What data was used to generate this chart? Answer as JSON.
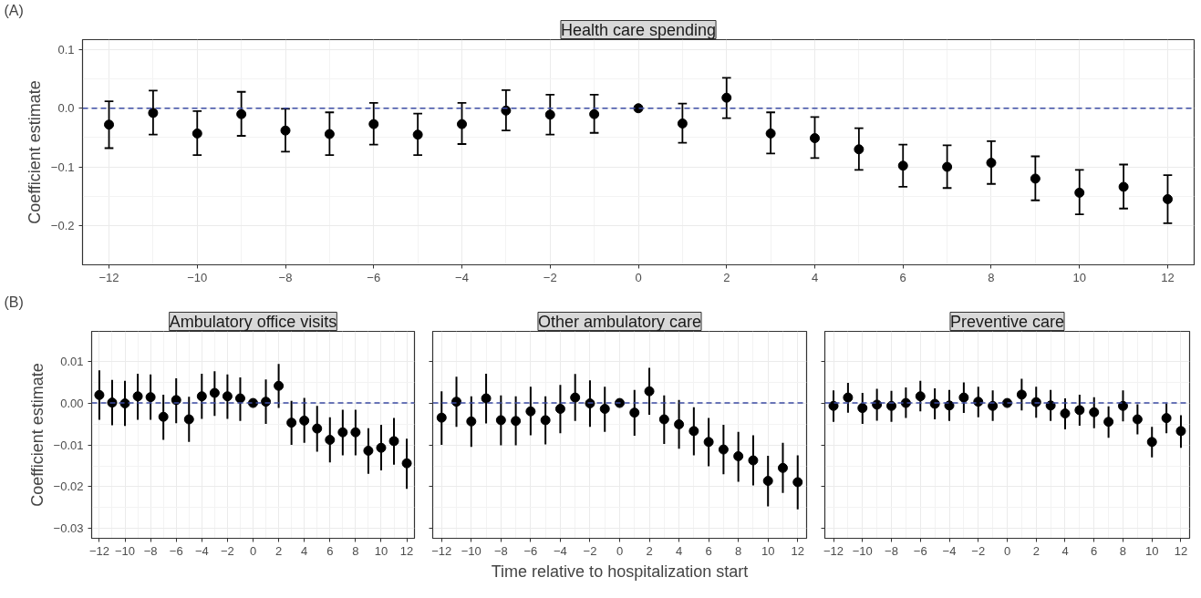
{
  "chart_data": [
    {
      "type": "scatter",
      "title": "Health care spending",
      "ylabel": "Coefficient estimate",
      "annotations": [
        "(A)"
      ],
      "marker": "circle",
      "color": "#000000",
      "grid": true,
      "x": [
        -12,
        -11,
        -10,
        -9,
        -8,
        -7,
        -6,
        -5,
        -4,
        -3,
        -2,
        -1,
        0,
        1,
        2,
        3,
        4,
        5,
        6,
        7,
        8,
        9,
        10,
        11,
        12
      ],
      "values": [
        -0.028,
        -0.008,
        -0.043,
        -0.01,
        -0.038,
        -0.044,
        -0.027,
        -0.045,
        -0.027,
        -0.004,
        -0.011,
        -0.01,
        0,
        -0.026,
        0.018,
        -0.043,
        -0.051,
        -0.07,
        -0.098,
        -0.1,
        -0.093,
        -0.12,
        -0.144,
        -0.134,
        -0.155
      ],
      "errors": [
        [
          -0.068,
          0.012
        ],
        [
          -0.045,
          0.03
        ],
        [
          -0.08,
          -0.005
        ],
        [
          -0.047,
          0.028
        ],
        [
          -0.074,
          -0.001
        ],
        [
          -0.08,
          -0.007
        ],
        [
          -0.062,
          0.009
        ],
        [
          -0.08,
          -0.009
        ],
        [
          -0.061,
          0.009
        ],
        [
          -0.038,
          0.031
        ],
        [
          -0.045,
          0.023
        ],
        [
          -0.042,
          0.023
        ],
        null,
        [
          -0.059,
          0.008
        ],
        [
          -0.017,
          0.052
        ],
        [
          -0.077,
          -0.007
        ],
        [
          -0.085,
          -0.015
        ],
        [
          -0.105,
          -0.034
        ],
        [
          -0.134,
          -0.062
        ],
        [
          -0.136,
          -0.063
        ],
        [
          -0.129,
          -0.056
        ],
        [
          -0.157,
          -0.082
        ],
        [
          -0.181,
          -0.105
        ],
        [
          -0.171,
          -0.096
        ],
        [
          -0.196,
          -0.114
        ]
      ],
      "xlim": [
        -12.6,
        12.6
      ],
      "ylim": [
        -0.267,
        0.117
      ],
      "xticks": [
        {
          "value": -12,
          "label": "−12"
        },
        {
          "value": -10,
          "label": "−10"
        },
        {
          "value": -8,
          "label": "−8"
        },
        {
          "value": -6,
          "label": "−6"
        },
        {
          "value": -4,
          "label": "−4"
        },
        {
          "value": -2,
          "label": "−2"
        },
        0,
        2,
        4,
        6,
        8,
        10,
        12
      ],
      "yticks": [
        {
          "value": -0.2,
          "label": "−0.2"
        },
        {
          "value": -0.1,
          "label": "−0.1"
        },
        {
          "value": 0,
          "label": "0.0"
        },
        0.1
      ],
      "ref_lines": [
        {
          "axis": "y",
          "value": 0,
          "color": "#3b4ba3",
          "line_style": "dashed"
        }
      ]
    },
    {
      "type": "scatter",
      "title": "Ambulatory office visits",
      "ylabel": "Coefficient estimate",
      "annotations": [
        "(B)"
      ],
      "marker": "circle",
      "color": "#000000",
      "grid": true,
      "x": [
        -12,
        -11,
        -10,
        -9,
        -8,
        -7,
        -6,
        -5,
        -4,
        -3,
        -2,
        -1,
        0,
        1,
        2,
        3,
        4,
        5,
        6,
        7,
        8,
        9,
        10,
        11,
        12
      ],
      "values": [
        0.0019,
        0.0001,
        -0.0001,
        0.0016,
        0.0014,
        -0.0033,
        0.0007,
        -0.0039,
        0.0016,
        0.0024,
        0.0016,
        0.0011,
        0,
        0.0003,
        0.0041,
        -0.0047,
        -0.0042,
        -0.0061,
        -0.0088,
        -0.007,
        -0.007,
        -0.0114,
        -0.0107,
        -0.0091,
        -0.0144
      ],
      "errors": [
        [
          -0.004,
          0.0078
        ],
        [
          -0.0053,
          0.0055
        ],
        [
          -0.0055,
          0.0053
        ],
        [
          -0.004,
          0.007
        ],
        [
          -0.004,
          0.0068
        ],
        [
          -0.0088,
          0.002
        ],
        [
          -0.0048,
          0.0059
        ],
        [
          -0.0093,
          0.0015
        ],
        [
          -0.0038,
          0.007
        ],
        [
          -0.0031,
          0.0076
        ],
        [
          -0.0038,
          0.0068
        ],
        [
          -0.0043,
          0.0061
        ],
        null,
        [
          -0.005,
          0.0056
        ],
        [
          -0.0012,
          0.0093
        ],
        [
          -0.01,
          0.0005
        ],
        [
          -0.0095,
          0.0012
        ],
        [
          -0.0116,
          -0.0007
        ],
        [
          -0.0142,
          -0.0034
        ],
        [
          -0.0125,
          -0.0016
        ],
        [
          -0.0125,
          -0.0016
        ],
        [
          -0.0169,
          -0.006
        ],
        [
          -0.0161,
          -0.0052
        ],
        [
          -0.0147,
          -0.0036
        ],
        [
          -0.0205,
          -0.0085
        ]
      ],
      "xlim": [
        -12.6,
        12.6
      ],
      "ylim": [
        -0.0323,
        0.0171
      ],
      "xticks": [
        {
          "value": -12,
          "label": "−12"
        },
        {
          "value": -10,
          "label": "−10"
        },
        {
          "value": -8,
          "label": "−8"
        },
        {
          "value": -6,
          "label": "−6"
        },
        {
          "value": -4,
          "label": "−4"
        },
        {
          "value": -2,
          "label": "−2"
        },
        0,
        2,
        4,
        6,
        8,
        10,
        12
      ],
      "yticks": [
        {
          "value": -0.03,
          "label": "−0.03"
        },
        {
          "value": -0.02,
          "label": "−0.02"
        },
        {
          "value": -0.01,
          "label": "−0.01"
        },
        {
          "value": 0,
          "label": "0.00"
        },
        0.01
      ],
      "ref_lines": [
        {
          "axis": "y",
          "value": 0,
          "color": "#3b4ba3",
          "line_style": "dashed"
        }
      ]
    },
    {
      "type": "scatter",
      "title": "Other ambulatory care",
      "xlabel": "Time relative to hospitalization start",
      "marker": "circle",
      "color": "#000000",
      "grid": true,
      "tick_labels": "x",
      "x": [
        -12,
        -11,
        -10,
        -9,
        -8,
        -7,
        -6,
        -5,
        -4,
        -3,
        -2,
        -1,
        0,
        1,
        2,
        3,
        4,
        5,
        6,
        7,
        8,
        9,
        10,
        11,
        12
      ],
      "yticks": [
        {
          "value": -0.03,
          "label": null
        },
        {
          "value": -0.02,
          "label": null
        },
        {
          "value": -0.01,
          "label": null
        },
        {
          "value": 0,
          "label": null
        },
        {
          "value": 0.01,
          "label": null
        }
      ],
      "values": [
        -0.0035,
        0.0003,
        -0.0044,
        0.0011,
        -0.0041,
        -0.0043,
        -0.002,
        -0.0041,
        -0.0014,
        0.0013,
        -0.0001,
        -0.0014,
        0,
        -0.0023,
        0.0028,
        -0.0039,
        -0.0051,
        -0.0067,
        -0.0093,
        -0.0111,
        -0.0127,
        -0.0137,
        -0.0186,
        -0.0155,
        -0.0189
      ],
      "errors": [
        [
          -0.01,
          0.0028
        ],
        [
          -0.0057,
          0.0063
        ],
        [
          -0.0105,
          0.0016
        ],
        [
          -0.0049,
          0.007
        ],
        [
          -0.0101,
          0.0018
        ],
        [
          -0.0101,
          0.0016
        ],
        [
          -0.0077,
          0.0039
        ],
        [
          -0.0099,
          0.0016
        ],
        [
          -0.0072,
          0.0043
        ],
        [
          -0.0043,
          0.0069
        ],
        [
          -0.0057,
          0.0054
        ],
        [
          -0.0069,
          0.0039
        ],
        null,
        [
          -0.0078,
          0.0031
        ],
        [
          -0.0028,
          0.0084
        ],
        [
          -0.0098,
          0.0018
        ],
        [
          -0.0109,
          0.0007
        ],
        [
          -0.0125,
          -0.001
        ],
        [
          -0.0151,
          -0.0036
        ],
        [
          -0.017,
          -0.0052
        ],
        [
          -0.0188,
          -0.0069
        ],
        [
          -0.0197,
          -0.0077
        ],
        [
          -0.0247,
          -0.0126
        ],
        [
          -0.0215,
          -0.0095
        ],
        [
          -0.0254,
          -0.0125
        ]
      ],
      "xlim": [
        -12.6,
        12.6
      ],
      "ylim": [
        -0.0323,
        0.0171
      ],
      "xticks": [
        {
          "value": -12,
          "label": "−12"
        },
        {
          "value": -10,
          "label": "−10"
        },
        {
          "value": -8,
          "label": "−8"
        },
        {
          "value": -6,
          "label": "−6"
        },
        {
          "value": -4,
          "label": "−4"
        },
        {
          "value": -2,
          "label": "−2"
        },
        0,
        2,
        4,
        6,
        8,
        10,
        12
      ],
      "ref_lines": [
        {
          "axis": "y",
          "value": 0,
          "color": "#3b4ba3",
          "line_style": "dashed"
        }
      ]
    },
    {
      "type": "scatter",
      "title": "Preventive care",
      "marker": "circle",
      "color": "#000000",
      "grid": true,
      "tick_labels": "x",
      "x": [
        -12,
        -11,
        -10,
        -9,
        -8,
        -7,
        -6,
        -5,
        -4,
        -3,
        -2,
        -1,
        0,
        1,
        2,
        3,
        4,
        5,
        6,
        7,
        8,
        9,
        10,
        11,
        12
      ],
      "values": [
        -0.0007,
        0.0013,
        -0.0012,
        -0.0004,
        -0.0007,
        0,
        0.0016,
        -0.0002,
        -0.0006,
        0.0013,
        0.0003,
        -0.0007,
        0,
        0.002,
        0.0002,
        -0.0006,
        -0.0025,
        -0.0017,
        -0.0022,
        -0.0045,
        -0.0007,
        -0.0039,
        -0.0093,
        -0.0036,
        -0.0067
      ],
      "errors": [
        [
          -0.0045,
          0.003
        ],
        [
          -0.0023,
          0.0048
        ],
        [
          -0.005,
          0.0024
        ],
        [
          -0.0042,
          0.0034
        ],
        [
          -0.0045,
          0.0029
        ],
        [
          -0.0036,
          0.0037
        ],
        [
          -0.002,
          0.0053
        ],
        [
          -0.0039,
          0.0035
        ],
        [
          -0.0043,
          0.0031
        ],
        [
          -0.0024,
          0.0049
        ],
        [
          -0.0034,
          0.0039
        ],
        [
          -0.0043,
          0.003
        ],
        null,
        [
          -0.0018,
          0.0058
        ],
        [
          -0.0035,
          0.0039
        ],
        [
          -0.0043,
          0.0031
        ],
        [
          -0.0063,
          0.0011
        ],
        [
          -0.0054,
          0.002
        ],
        [
          -0.006,
          0.0014
        ],
        [
          -0.0083,
          -0.0008
        ],
        [
          -0.0044,
          0.003
        ],
        [
          -0.0075,
          -0.0003
        ],
        [
          -0.013,
          -0.0057
        ],
        [
          -0.0072,
          -0.0001
        ],
        [
          -0.0107,
          -0.0029
        ]
      ],
      "xlim": [
        -12.6,
        12.6
      ],
      "ylim": [
        -0.0323,
        0.0171
      ],
      "xticks": [
        {
          "value": -12,
          "label": "−12"
        },
        {
          "value": -10,
          "label": "−10"
        },
        {
          "value": -8,
          "label": "−8"
        },
        {
          "value": -6,
          "label": "−6"
        },
        {
          "value": -4,
          "label": "−4"
        },
        {
          "value": -2,
          "label": "−2"
        },
        0,
        2,
        4,
        6,
        8,
        10,
        12
      ],
      "yticks": [
        {
          "value": -0.03,
          "label": null
        },
        {
          "value": -0.02,
          "label": null
        },
        {
          "value": -0.01,
          "label": null
        },
        {
          "value": 0,
          "label": null
        },
        {
          "value": 0.01,
          "label": null
        }
      ],
      "ref_lines": [
        {
          "axis": "y",
          "value": 0,
          "color": "#3b4ba3",
          "line_style": "dashed"
        }
      ]
    }
  ]
}
